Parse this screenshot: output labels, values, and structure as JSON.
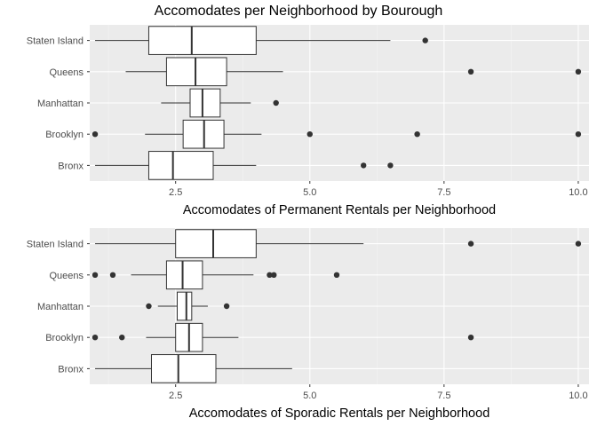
{
  "chart_data": [
    {
      "type": "boxplot",
      "title": "Accomodates per Neighborhood by Bourough",
      "xlabel": "Accomodates of Permanent Rentals per Neighborhood",
      "ylabel": "",
      "xlim": [
        0.9,
        10.2
      ],
      "xticks": [
        2.5,
        5.0,
        7.5,
        10.0
      ],
      "xtick_labels": [
        "2.5",
        "5.0",
        "7.5",
        "10.0"
      ],
      "grid": true,
      "categories": [
        "Staten Island",
        "Queens",
        "Manhattan",
        "Brooklyn",
        "Bronx"
      ],
      "boxes": [
        {
          "category": "Staten Island",
          "whisker_low": 1.0,
          "q1": 2.0,
          "median": 2.8,
          "q3": 4.0,
          "whisker_high": 6.5,
          "outliers": [
            7.15
          ]
        },
        {
          "category": "Queens",
          "whisker_low": 1.57,
          "q1": 2.33,
          "median": 2.87,
          "q3": 3.45,
          "whisker_high": 4.5,
          "outliers": [
            8.0,
            10.0
          ]
        },
        {
          "category": "Manhattan",
          "whisker_low": 2.23,
          "q1": 2.77,
          "median": 3.0,
          "q3": 3.33,
          "whisker_high": 3.9,
          "outliers": [
            4.37
          ]
        },
        {
          "category": "Brooklyn",
          "whisker_low": 1.93,
          "q1": 2.64,
          "median": 3.03,
          "q3": 3.4,
          "whisker_high": 4.1,
          "outliers": [
            1.0,
            5.0,
            7.0,
            10.0
          ]
        },
        {
          "category": "Bronx",
          "whisker_low": 1.0,
          "q1": 2.0,
          "median": 2.45,
          "q3": 3.2,
          "whisker_high": 4.0,
          "outliers": [
            6.0,
            6.5
          ]
        }
      ]
    },
    {
      "type": "boxplot",
      "title": "",
      "xlabel": "Accomodates of Sporadic Rentals per Neighborhood",
      "ylabel": "",
      "xlim": [
        0.9,
        10.2
      ],
      "xticks": [
        2.5,
        5.0,
        7.5,
        10.0
      ],
      "xtick_labels": [
        "2.5",
        "5.0",
        "7.5",
        "10.0"
      ],
      "grid": true,
      "categories": [
        "Staten Island",
        "Queens",
        "Manhattan",
        "Brooklyn",
        "Bronx"
      ],
      "boxes": [
        {
          "category": "Staten Island",
          "whisker_low": 1.0,
          "q1": 2.5,
          "median": 3.2,
          "q3": 4.0,
          "whisker_high": 6.0,
          "outliers": [
            8.0,
            10.0
          ]
        },
        {
          "category": "Queens",
          "whisker_low": 1.67,
          "q1": 2.33,
          "median": 2.63,
          "q3": 3.0,
          "whisker_high": 3.95,
          "outliers": [
            1.0,
            1.33,
            4.25,
            4.33,
            5.5
          ]
        },
        {
          "category": "Manhattan",
          "whisker_low": 2.17,
          "q1": 2.53,
          "median": 2.7,
          "q3": 2.8,
          "whisker_high": 3.1,
          "outliers": [
            2.0,
            3.45
          ]
        },
        {
          "category": "Brooklyn",
          "whisker_low": 1.95,
          "q1": 2.5,
          "median": 2.75,
          "q3": 3.0,
          "whisker_high": 3.67,
          "outliers": [
            1.0,
            1.5,
            8.0
          ]
        },
        {
          "category": "Bronx",
          "whisker_low": 1.0,
          "q1": 2.05,
          "median": 2.55,
          "q3": 3.25,
          "whisker_high": 4.67,
          "outliers": []
        }
      ]
    }
  ],
  "colors": {
    "panel_background": "#ebebeb",
    "grid_major": "#ffffff",
    "grid_minor": "#f4f4f4",
    "box_fill": "#ffffff",
    "box_stroke": "#333333",
    "outlier": "#333333",
    "tick_text": "#4d4d4d",
    "tick_mark": "#333333"
  }
}
